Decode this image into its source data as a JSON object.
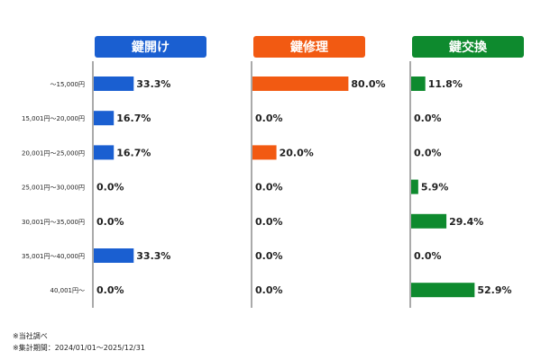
{
  "chart_data": {
    "type": "bar",
    "orientation": "horizontal",
    "categories": [
      "〜15,000円",
      "15,001円〜20,000円",
      "20,001円〜25,000円",
      "25,001円〜30,000円",
      "30,001円〜35,000円",
      "35,001円〜40,000円",
      "40,001円〜"
    ],
    "unit": "%",
    "xlim": [
      0,
      100
    ],
    "grid": false,
    "series": [
      {
        "name": "鍵開け",
        "color": "#1a5fd1",
        "values": [
          33.3,
          16.7,
          16.7,
          0.0,
          0.0,
          33.3,
          0.0
        ],
        "labels": [
          "33.3%",
          "16.7%",
          "16.7%",
          "0.0%",
          "0.0%",
          "33.3%",
          "0.0%"
        ]
      },
      {
        "name": "鍵修理",
        "color": "#f25a12",
        "values": [
          80.0,
          0.0,
          20.0,
          0.0,
          0.0,
          0.0,
          0.0
        ],
        "labels": [
          "80.0%",
          "0.0%",
          "20.0%",
          "0.0%",
          "0.0%",
          "0.0%",
          "0.0%"
        ]
      },
      {
        "name": "鍵交換",
        "color": "#0e8a2e",
        "values": [
          11.8,
          0.0,
          0.0,
          5.9,
          29.4,
          0.0,
          52.9
        ],
        "labels": [
          "11.8%",
          "0.0%",
          "0.0%",
          "5.9%",
          "29.4%",
          "0.0%",
          "52.9%"
        ]
      }
    ]
  },
  "notes": {
    "line1": "※当社調べ",
    "line2": "※集計期間：2024/01/01〜2025/12/31"
  }
}
